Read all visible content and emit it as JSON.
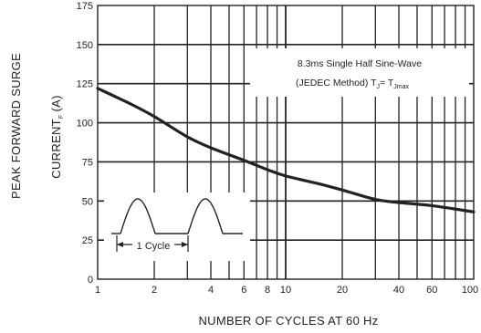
{
  "chart_data": {
    "type": "line",
    "xlabel": "NUMBER OF CYCLES AT 60 Hz",
    "ylabel_line1": "PEAK FORWARD SURGE",
    "ylabel_line2": "CURRENT",
    "ylabel_sub": "F",
    "ylabel_unit": "(A)",
    "x_scale": "log",
    "xlim": [
      1,
      100
    ],
    "ylim": [
      0,
      175
    ],
    "x_ticks": [
      1,
      2,
      4,
      6,
      8,
      10,
      20,
      40,
      60,
      100
    ],
    "x_tick_labels": [
      "1",
      "2",
      "4",
      "6",
      "8",
      "10",
      "20",
      "40",
      "60",
      "100"
    ],
    "y_ticks": [
      0,
      25,
      50,
      75,
      100,
      125,
      150,
      175
    ],
    "y_tick_labels": [
      "0",
      "25",
      "50",
      "75",
      "100",
      "125",
      "150",
      "175"
    ],
    "grid": true,
    "series": [
      {
        "x": [
          1,
          1.5,
          2,
          3,
          4,
          6,
          8,
          10,
          15,
          20,
          30,
          40,
          60,
          100
        ],
        "y": [
          122,
          112,
          104,
          91,
          84,
          76,
          70,
          66,
          61,
          57,
          51,
          49,
          47,
          43
        ]
      }
    ],
    "annotation": {
      "line1": "8.3ms Single Half Sine-Wave",
      "line2_prefix": "(JEDEC Method) T",
      "line2_sub1": "J",
      "line2_mid": "= T",
      "line2_sub2": "Jmax"
    },
    "waveform_label": "1 Cycle"
  }
}
